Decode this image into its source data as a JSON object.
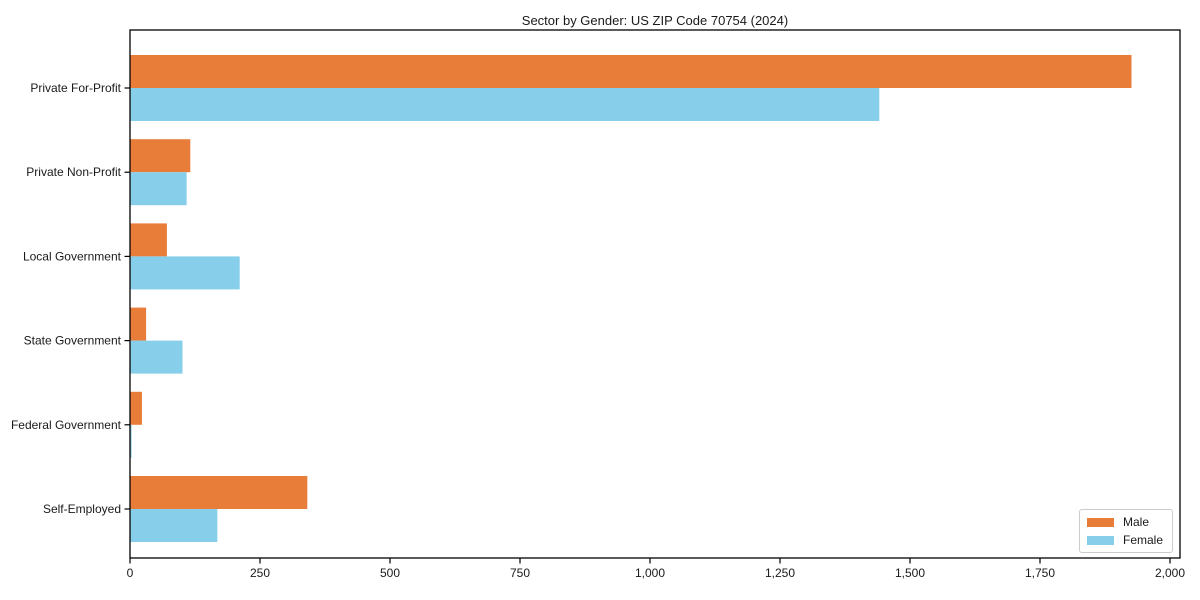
{
  "title": "Sector by Gender: US ZIP Code 70754 (2024)",
  "colors": {
    "male": "#e87d3a",
    "female": "#87ceeb",
    "axis": "#000000",
    "text": "#1a1a1a",
    "legend_border": "#cccccc",
    "background": "#ffffff"
  },
  "chart_data": {
    "type": "bar",
    "orientation": "horizontal",
    "title": "Sector by Gender: US ZIP Code 70754 (2024)",
    "categories": [
      "Private For-Profit",
      "Private Non-Profit",
      "Local Government",
      "State Government",
      "Federal Government",
      "Self-Employed"
    ],
    "series": [
      {
        "name": "Male",
        "color": "#e87d3a",
        "values": [
          1925,
          115,
          70,
          30,
          22,
          340
        ]
      },
      {
        "name": "Female",
        "color": "#87ceeb",
        "values": [
          1440,
          108,
          210,
          100,
          2,
          167
        ]
      }
    ],
    "xlabel": "",
    "ylabel": "",
    "xlim": [
      0,
      2000
    ],
    "xticks": [
      0,
      250,
      500,
      750,
      1000,
      1250,
      1500,
      1750,
      2000
    ],
    "xtick_labels": [
      "0",
      "250",
      "500",
      "750",
      "1,000",
      "1,250",
      "1,500",
      "1,750",
      "2,000"
    ],
    "grid": false,
    "legend": {
      "position": "lower right",
      "entries": [
        "Male",
        "Female"
      ]
    }
  }
}
